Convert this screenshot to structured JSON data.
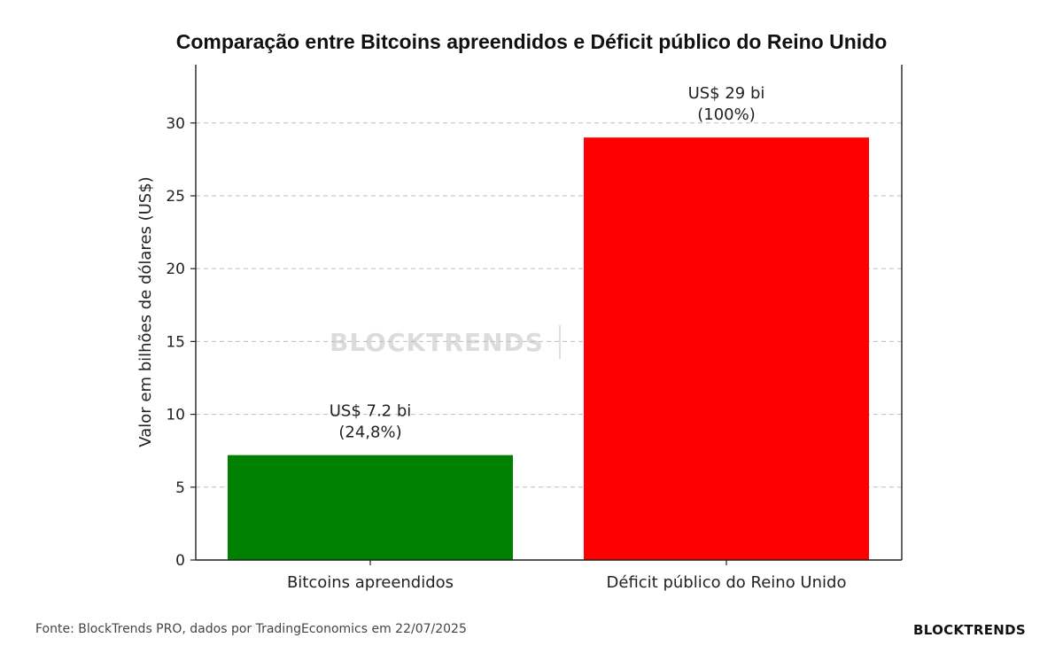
{
  "chart_data": {
    "type": "bar",
    "title": "Comparação entre Bitcoins apreendidos e Déficit público do Reino Unido",
    "ylabel": "Valor em bilhões de dólares (US$)",
    "xlabel": "",
    "categories": [
      "Bitcoins apreendidos",
      "Déficit público do Reino Unido"
    ],
    "values": [
      7.2,
      29
    ],
    "colors": [
      "#008000",
      "#ff0000"
    ],
    "data_labels": [
      [
        "US$ 7.2 bi",
        "(24,8%)"
      ],
      [
        "US$ 29 bi",
        "(100%)"
      ]
    ],
    "ylim": [
      0,
      34
    ],
    "yticks": [
      0,
      5,
      10,
      15,
      20,
      25,
      30
    ],
    "grid": "horizontal-dashed"
  },
  "footer": {
    "source": "Fonte: BlockTrends PRO, dados por TradingEconomics em 22/07/2025",
    "brand": "BLOCKTRENDS"
  },
  "watermark": {
    "text": "BLOCKTRENDS"
  }
}
